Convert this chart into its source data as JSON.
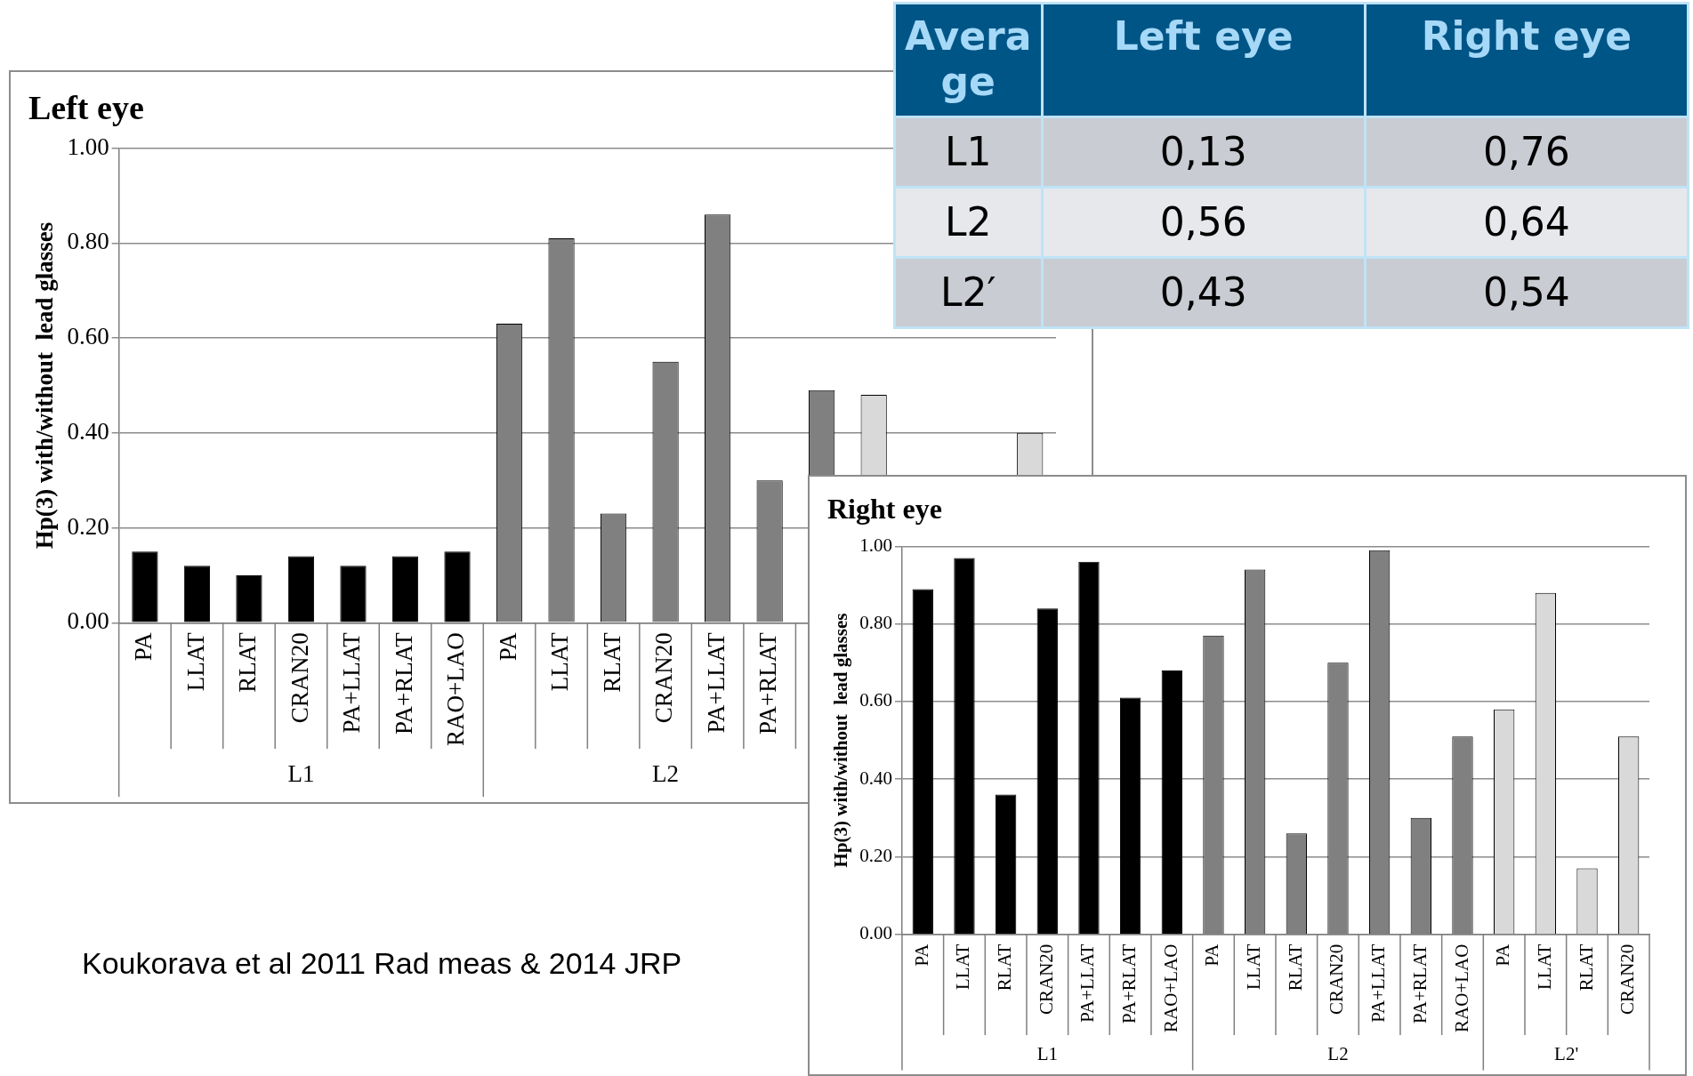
{
  "chart_data": [
    {
      "type": "bar",
      "title": "Left eye",
      "ylabel": "Hp(3) with/without  lead glasses",
      "categories": [
        "PA",
        "LLAT",
        "RLAT",
        "CRAN20",
        "PA+LLAT",
        "PA+RLAT",
        "RAO+LAO",
        "PA",
        "LLAT",
        "RLAT",
        "CRAN20",
        "PA+LLAT",
        "PA+RLAT",
        null,
        null,
        null,
        null,
        null
      ],
      "values": [
        0.15,
        0.12,
        0.1,
        0.14,
        0.12,
        0.14,
        0.15,
        0.63,
        0.81,
        0.23,
        0.55,
        0.86,
        0.3,
        0.49,
        0.48,
        null,
        null,
        0.4
      ],
      "colors": [
        "#000000",
        "#000000",
        "#000000",
        "#000000",
        "#000000",
        "#000000",
        "#000000",
        "#808080",
        "#808080",
        "#808080",
        "#808080",
        "#808080",
        "#808080",
        "#808080",
        "#d9d9d9",
        "#d9d9d9",
        "#d9d9d9",
        "#d9d9d9"
      ],
      "ylim": [
        0,
        1
      ],
      "yticks": [
        {
          "value": 0,
          "label": "0.00"
        },
        {
          "value": 0.2,
          "label": "0.20"
        },
        {
          "value": 0.4,
          "label": "0.40"
        },
        {
          "value": 0.6,
          "label": "0.60"
        },
        {
          "value": 0.8,
          "label": "0.80"
        },
        {
          "value": 1,
          "label": "1.00"
        }
      ],
      "grid": "y",
      "legend": false,
      "annotations": [
        "L1",
        "L2"
      ]
    },
    {
      "type": "heatmap",
      "ylabel": "Average",
      "categories": [
        "Left eye",
        "Right eye"
      ],
      "y_categories": [
        "L1",
        "L2",
        "L2′"
      ],
      "cells": [
        [
          0.13,
          0.76
        ],
        [
          0.56,
          0.64
        ],
        [
          0.43,
          0.54
        ]
      ],
      "cell_labels": [
        [
          "0,13",
          "0,76"
        ],
        [
          "0,56",
          "0,64"
        ],
        [
          "0,43",
          "0,54"
        ]
      ]
    },
    {
      "type": "bar",
      "title": "Right eye",
      "ylabel": "Hp(3) with/without  lead glasses",
      "categories": [
        "PA",
        "LLAT",
        "RLAT",
        "CRAN20",
        "PA+LLAT",
        "PA+RLAT",
        "RAO+LAO",
        "PA",
        "LLAT",
        "RLAT",
        "CRAN20",
        "PA+LLAT",
        "PA+RLAT",
        "RAO+LAO",
        "PA",
        "LLAT",
        "RLAT",
        "CRAN20"
      ],
      "values": [
        0.89,
        0.97,
        0.36,
        0.84,
        0.96,
        0.61,
        0.68,
        0.77,
        0.94,
        0.26,
        0.7,
        0.99,
        0.3,
        0.51,
        0.58,
        0.88,
        0.17,
        0.51
      ],
      "colors": [
        "#000000",
        "#000000",
        "#000000",
        "#000000",
        "#000000",
        "#000000",
        "#000000",
        "#808080",
        "#808080",
        "#808080",
        "#808080",
        "#808080",
        "#808080",
        "#808080",
        "#d9d9d9",
        "#d9d9d9",
        "#d9d9d9",
        "#d9d9d9"
      ],
      "ylim": [
        0,
        1
      ],
      "yticks": [
        {
          "value": 0,
          "label": "0.00"
        },
        {
          "value": 0.2,
          "label": "0.20"
        },
        {
          "value": 0.4,
          "label": "0.40"
        },
        {
          "value": 0.6,
          "label": "0.60"
        },
        {
          "value": 0.8,
          "label": "0.80"
        },
        {
          "value": 1,
          "label": "1.00"
        }
      ],
      "grid": "y",
      "legend": false,
      "annotations": [
        "L1",
        "L2",
        "L2'"
      ]
    },
    {
      "type": "other",
      "annotations": [
        "Koukorava et al 2011 Rad meas & 2014 JRP"
      ]
    }
  ]
}
